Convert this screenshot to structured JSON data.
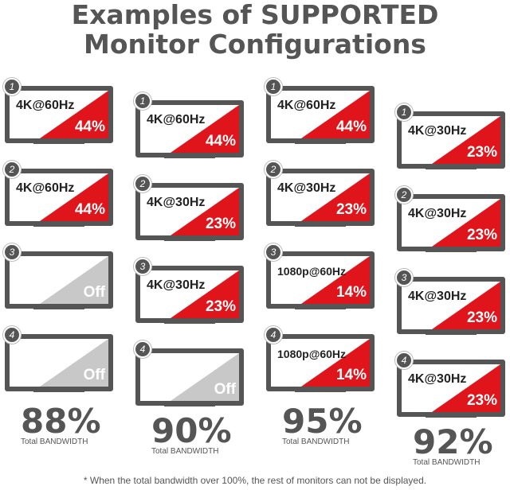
{
  "title": {
    "line1": "Examples of SUPPORTED",
    "line2": "Monitor Configurations"
  },
  "colors": {
    "active": "#e0141b",
    "off": "#c8c8c8",
    "frame": "#555555"
  },
  "configs": [
    {
      "monitors": [
        {
          "num": "1",
          "res": "4K@60Hz",
          "pct": "44%",
          "state": "active"
        },
        {
          "num": "2",
          "res": "4K@60Hz",
          "pct": "44%",
          "state": "active"
        },
        {
          "num": "3",
          "res": "",
          "pct": "Off",
          "state": "off"
        },
        {
          "num": "4",
          "res": "",
          "pct": "Off",
          "state": "off"
        }
      ],
      "total": "88%",
      "total_label": "Total BANDWIDTH"
    },
    {
      "monitors": [
        {
          "num": "1",
          "res": "4K@60Hz",
          "pct": "44%",
          "state": "active"
        },
        {
          "num": "2",
          "res": "4K@30Hz",
          "pct": "23%",
          "state": "active"
        },
        {
          "num": "3",
          "res": "4K@30Hz",
          "pct": "23%",
          "state": "active"
        },
        {
          "num": "4",
          "res": "",
          "pct": "Off",
          "state": "off"
        }
      ],
      "total": "90%",
      "total_label": "Total BANDWIDTH"
    },
    {
      "monitors": [
        {
          "num": "1",
          "res": "4K@60Hz",
          "pct": "44%",
          "state": "active"
        },
        {
          "num": "2",
          "res": "4K@30Hz",
          "pct": "23%",
          "state": "active"
        },
        {
          "num": "3",
          "res": "1080p@60Hz",
          "pct": "14%",
          "state": "active"
        },
        {
          "num": "4",
          "res": "1080p@60Hz",
          "pct": "14%",
          "state": "active"
        }
      ],
      "total": "95%",
      "total_label": "Total BANDWIDTH"
    },
    {
      "monitors": [
        {
          "num": "1",
          "res": "4K@30Hz",
          "pct": "23%",
          "state": "active"
        },
        {
          "num": "2",
          "res": "4K@30Hz",
          "pct": "23%",
          "state": "active"
        },
        {
          "num": "3",
          "res": "4K@30Hz",
          "pct": "23%",
          "state": "active"
        },
        {
          "num": "4",
          "res": "4K@30Hz",
          "pct": "23%",
          "state": "active"
        }
      ],
      "total": "92%",
      "total_label": "Total BANDWIDTH"
    }
  ],
  "footnote": "* When the total bandwidth over 100%, the rest of monitors can not be displayed."
}
